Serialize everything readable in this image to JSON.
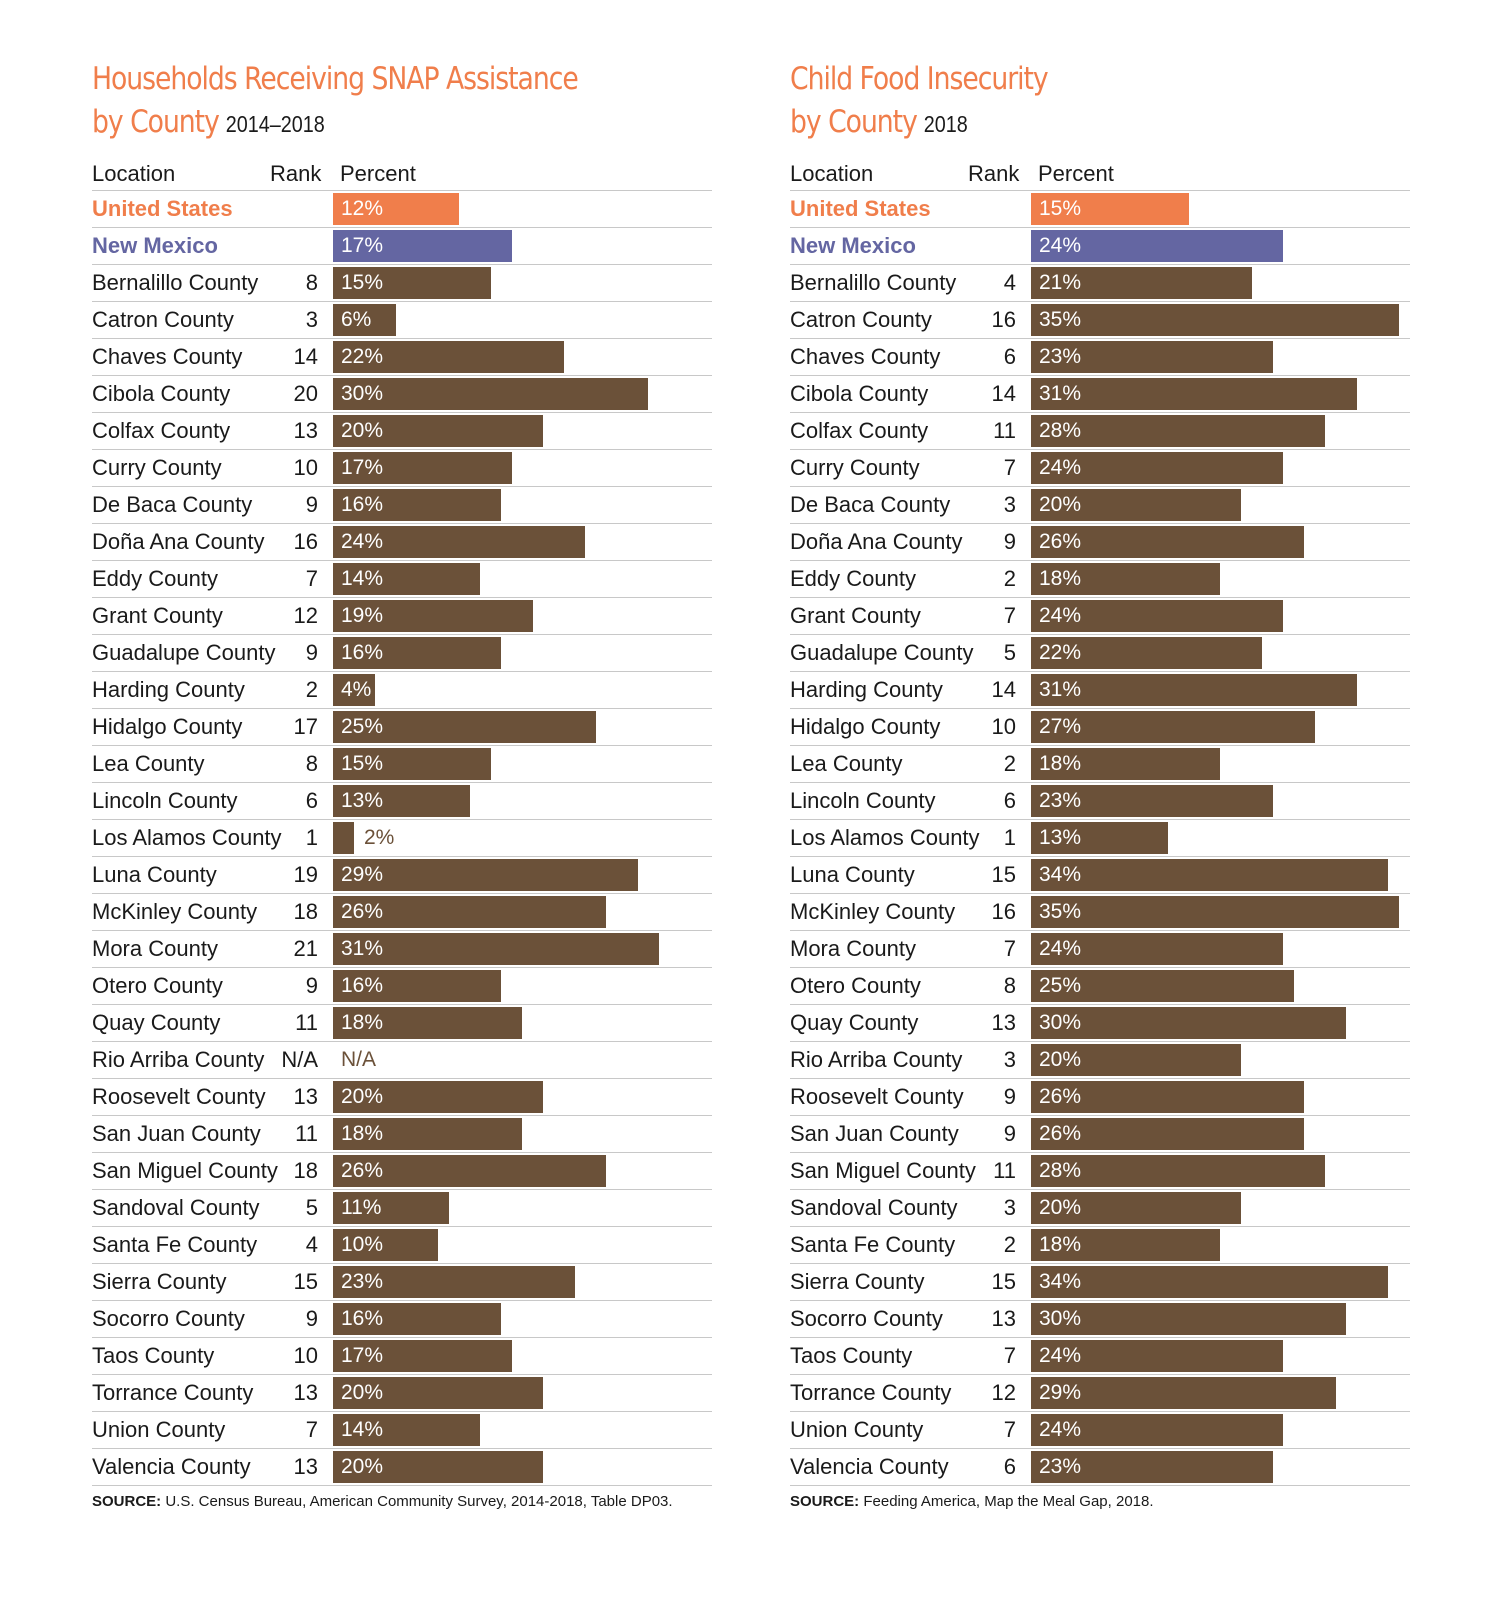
{
  "chart_data": [
    {
      "type": "bar",
      "title": "Households Receiving SNAP Assistance by County",
      "subtitle": "2014–2018",
      "columns": {
        "location": "Location",
        "rank": "Rank",
        "percent": "Percent"
      },
      "xlim": [
        0,
        35
      ],
      "source_label": "SOURCE:",
      "source_text": "U.S. Census Bureau, American Community Survey, 2014-2018, Table DP03.",
      "colors": {
        "united_states": "#f07e4b",
        "new_mexico": "#6466a2",
        "county": "#6b5139"
      },
      "rows": [
        {
          "location": "United States",
          "rank": "",
          "value": 12,
          "label": "12%",
          "kind": "us"
        },
        {
          "location": "New Mexico",
          "rank": "",
          "value": 17,
          "label": "17%",
          "kind": "nm"
        },
        {
          "location": "Bernalillo County",
          "rank": "8",
          "value": 15,
          "label": "15%"
        },
        {
          "location": "Catron County",
          "rank": "3",
          "value": 6,
          "label": "6%"
        },
        {
          "location": "Chaves County",
          "rank": "14",
          "value": 22,
          "label": "22%"
        },
        {
          "location": "Cibola County",
          "rank": "20",
          "value": 30,
          "label": "30%"
        },
        {
          "location": "Colfax County",
          "rank": "13",
          "value": 20,
          "label": "20%"
        },
        {
          "location": "Curry County",
          "rank": "10",
          "value": 17,
          "label": "17%"
        },
        {
          "location": "De Baca County",
          "rank": "9",
          "value": 16,
          "label": "16%"
        },
        {
          "location": "Doña Ana County",
          "rank": "16",
          "value": 24,
          "label": "24%"
        },
        {
          "location": "Eddy County",
          "rank": "7",
          "value": 14,
          "label": "14%"
        },
        {
          "location": "Grant County",
          "rank": "12",
          "value": 19,
          "label": "19%"
        },
        {
          "location": "Guadalupe County",
          "rank": "9",
          "value": 16,
          "label": "16%"
        },
        {
          "location": "Harding County",
          "rank": "2",
          "value": 4,
          "label": "4%"
        },
        {
          "location": "Hidalgo County",
          "rank": "17",
          "value": 25,
          "label": "25%"
        },
        {
          "location": "Lea County",
          "rank": "8",
          "value": 15,
          "label": "15%"
        },
        {
          "location": "Lincoln County",
          "rank": "6",
          "value": 13,
          "label": "13%"
        },
        {
          "location": "Los Alamos County",
          "rank": "1",
          "value": 2,
          "label": "2%"
        },
        {
          "location": "Luna County",
          "rank": "19",
          "value": 29,
          "label": "29%"
        },
        {
          "location": "McKinley County",
          "rank": "18",
          "value": 26,
          "label": "26%"
        },
        {
          "location": "Mora County",
          "rank": "21",
          "value": 31,
          "label": "31%"
        },
        {
          "location": "Otero County",
          "rank": "9",
          "value": 16,
          "label": "16%"
        },
        {
          "location": "Quay County",
          "rank": "11",
          "value": 18,
          "label": "18%"
        },
        {
          "location": "Rio Arriba County",
          "rank": "N/A",
          "value": null,
          "label": "N/A"
        },
        {
          "location": "Roosevelt County",
          "rank": "13",
          "value": 20,
          "label": "20%"
        },
        {
          "location": "San Juan County",
          "rank": "11",
          "value": 18,
          "label": "18%"
        },
        {
          "location": "San Miguel County",
          "rank": "18",
          "value": 26,
          "label": "26%"
        },
        {
          "location": "Sandoval County",
          "rank": "5",
          "value": 11,
          "label": "11%"
        },
        {
          "location": "Santa Fe County",
          "rank": "4",
          "value": 10,
          "label": "10%"
        },
        {
          "location": "Sierra County",
          "rank": "15",
          "value": 23,
          "label": "23%"
        },
        {
          "location": "Socorro County",
          "rank": "9",
          "value": 16,
          "label": "16%"
        },
        {
          "location": "Taos County",
          "rank": "10",
          "value": 17,
          "label": "17%"
        },
        {
          "location": "Torrance County",
          "rank": "13",
          "value": 20,
          "label": "20%"
        },
        {
          "location": "Union County",
          "rank": "7",
          "value": 14,
          "label": "14%"
        },
        {
          "location": "Valencia County",
          "rank": "13",
          "value": 20,
          "label": "20%"
        }
      ]
    },
    {
      "type": "bar",
      "title": "Child Food Insecurity by County",
      "subtitle": "2018",
      "columns": {
        "location": "Location",
        "rank": "Rank",
        "percent": "Percent"
      },
      "xlim": [
        0,
        35
      ],
      "source_label": "SOURCE:",
      "source_text": "Feeding America, Map the Meal Gap, 2018.",
      "colors": {
        "united_states": "#f07e4b",
        "new_mexico": "#6466a2",
        "county": "#6b5139"
      },
      "rows": [
        {
          "location": "United States",
          "rank": "",
          "value": 15,
          "label": "15%",
          "kind": "us"
        },
        {
          "location": "New Mexico",
          "rank": "",
          "value": 24,
          "label": "24%",
          "kind": "nm"
        },
        {
          "location": "Bernalillo County",
          "rank": "4",
          "value": 21,
          "label": "21%"
        },
        {
          "location": "Catron County",
          "rank": "16",
          "value": 35,
          "label": "35%"
        },
        {
          "location": "Chaves County",
          "rank": "6",
          "value": 23,
          "label": "23%"
        },
        {
          "location": "Cibola County",
          "rank": "14",
          "value": 31,
          "label": "31%"
        },
        {
          "location": "Colfax County",
          "rank": "11",
          "value": 28,
          "label": "28%"
        },
        {
          "location": "Curry County",
          "rank": "7",
          "value": 24,
          "label": "24%"
        },
        {
          "location": "De Baca County",
          "rank": "3",
          "value": 20,
          "label": "20%"
        },
        {
          "location": "Doña Ana County",
          "rank": "9",
          "value": 26,
          "label": "26%"
        },
        {
          "location": "Eddy County",
          "rank": "2",
          "value": 18,
          "label": "18%"
        },
        {
          "location": "Grant County",
          "rank": "7",
          "value": 24,
          "label": "24%"
        },
        {
          "location": "Guadalupe County",
          "rank": "5",
          "value": 22,
          "label": "22%"
        },
        {
          "location": "Harding County",
          "rank": "14",
          "value": 31,
          "label": "31%"
        },
        {
          "location": "Hidalgo County",
          "rank": "10",
          "value": 27,
          "label": "27%"
        },
        {
          "location": "Lea County",
          "rank": "2",
          "value": 18,
          "label": "18%"
        },
        {
          "location": "Lincoln County",
          "rank": "6",
          "value": 23,
          "label": "23%"
        },
        {
          "location": "Los Alamos County",
          "rank": "1",
          "value": 13,
          "label": "13%"
        },
        {
          "location": "Luna County",
          "rank": "15",
          "value": 34,
          "label": "34%"
        },
        {
          "location": "McKinley County",
          "rank": "16",
          "value": 35,
          "label": "35%"
        },
        {
          "location": "Mora County",
          "rank": "7",
          "value": 24,
          "label": "24%"
        },
        {
          "location": "Otero County",
          "rank": "8",
          "value": 25,
          "label": "25%"
        },
        {
          "location": "Quay County",
          "rank": "13",
          "value": 30,
          "label": "30%"
        },
        {
          "location": "Rio Arriba County",
          "rank": "3",
          "value": 20,
          "label": "20%"
        },
        {
          "location": "Roosevelt County",
          "rank": "9",
          "value": 26,
          "label": "26%"
        },
        {
          "location": "San Juan County",
          "rank": "9",
          "value": 26,
          "label": "26%"
        },
        {
          "location": "San Miguel County",
          "rank": "11",
          "value": 28,
          "label": "28%"
        },
        {
          "location": "Sandoval County",
          "rank": "3",
          "value": 20,
          "label": "20%"
        },
        {
          "location": "Santa Fe County",
          "rank": "2",
          "value": 18,
          "label": "18%"
        },
        {
          "location": "Sierra County",
          "rank": "15",
          "value": 34,
          "label": "34%"
        },
        {
          "location": "Socorro County",
          "rank": "13",
          "value": 30,
          "label": "30%"
        },
        {
          "location": "Taos County",
          "rank": "7",
          "value": 24,
          "label": "24%"
        },
        {
          "location": "Torrance County",
          "rank": "12",
          "value": 29,
          "label": "29%"
        },
        {
          "location": "Union County",
          "rank": "7",
          "value": 24,
          "label": "24%"
        },
        {
          "location": "Valencia County",
          "rank": "6",
          "value": 23,
          "label": "23%"
        }
      ]
    }
  ]
}
